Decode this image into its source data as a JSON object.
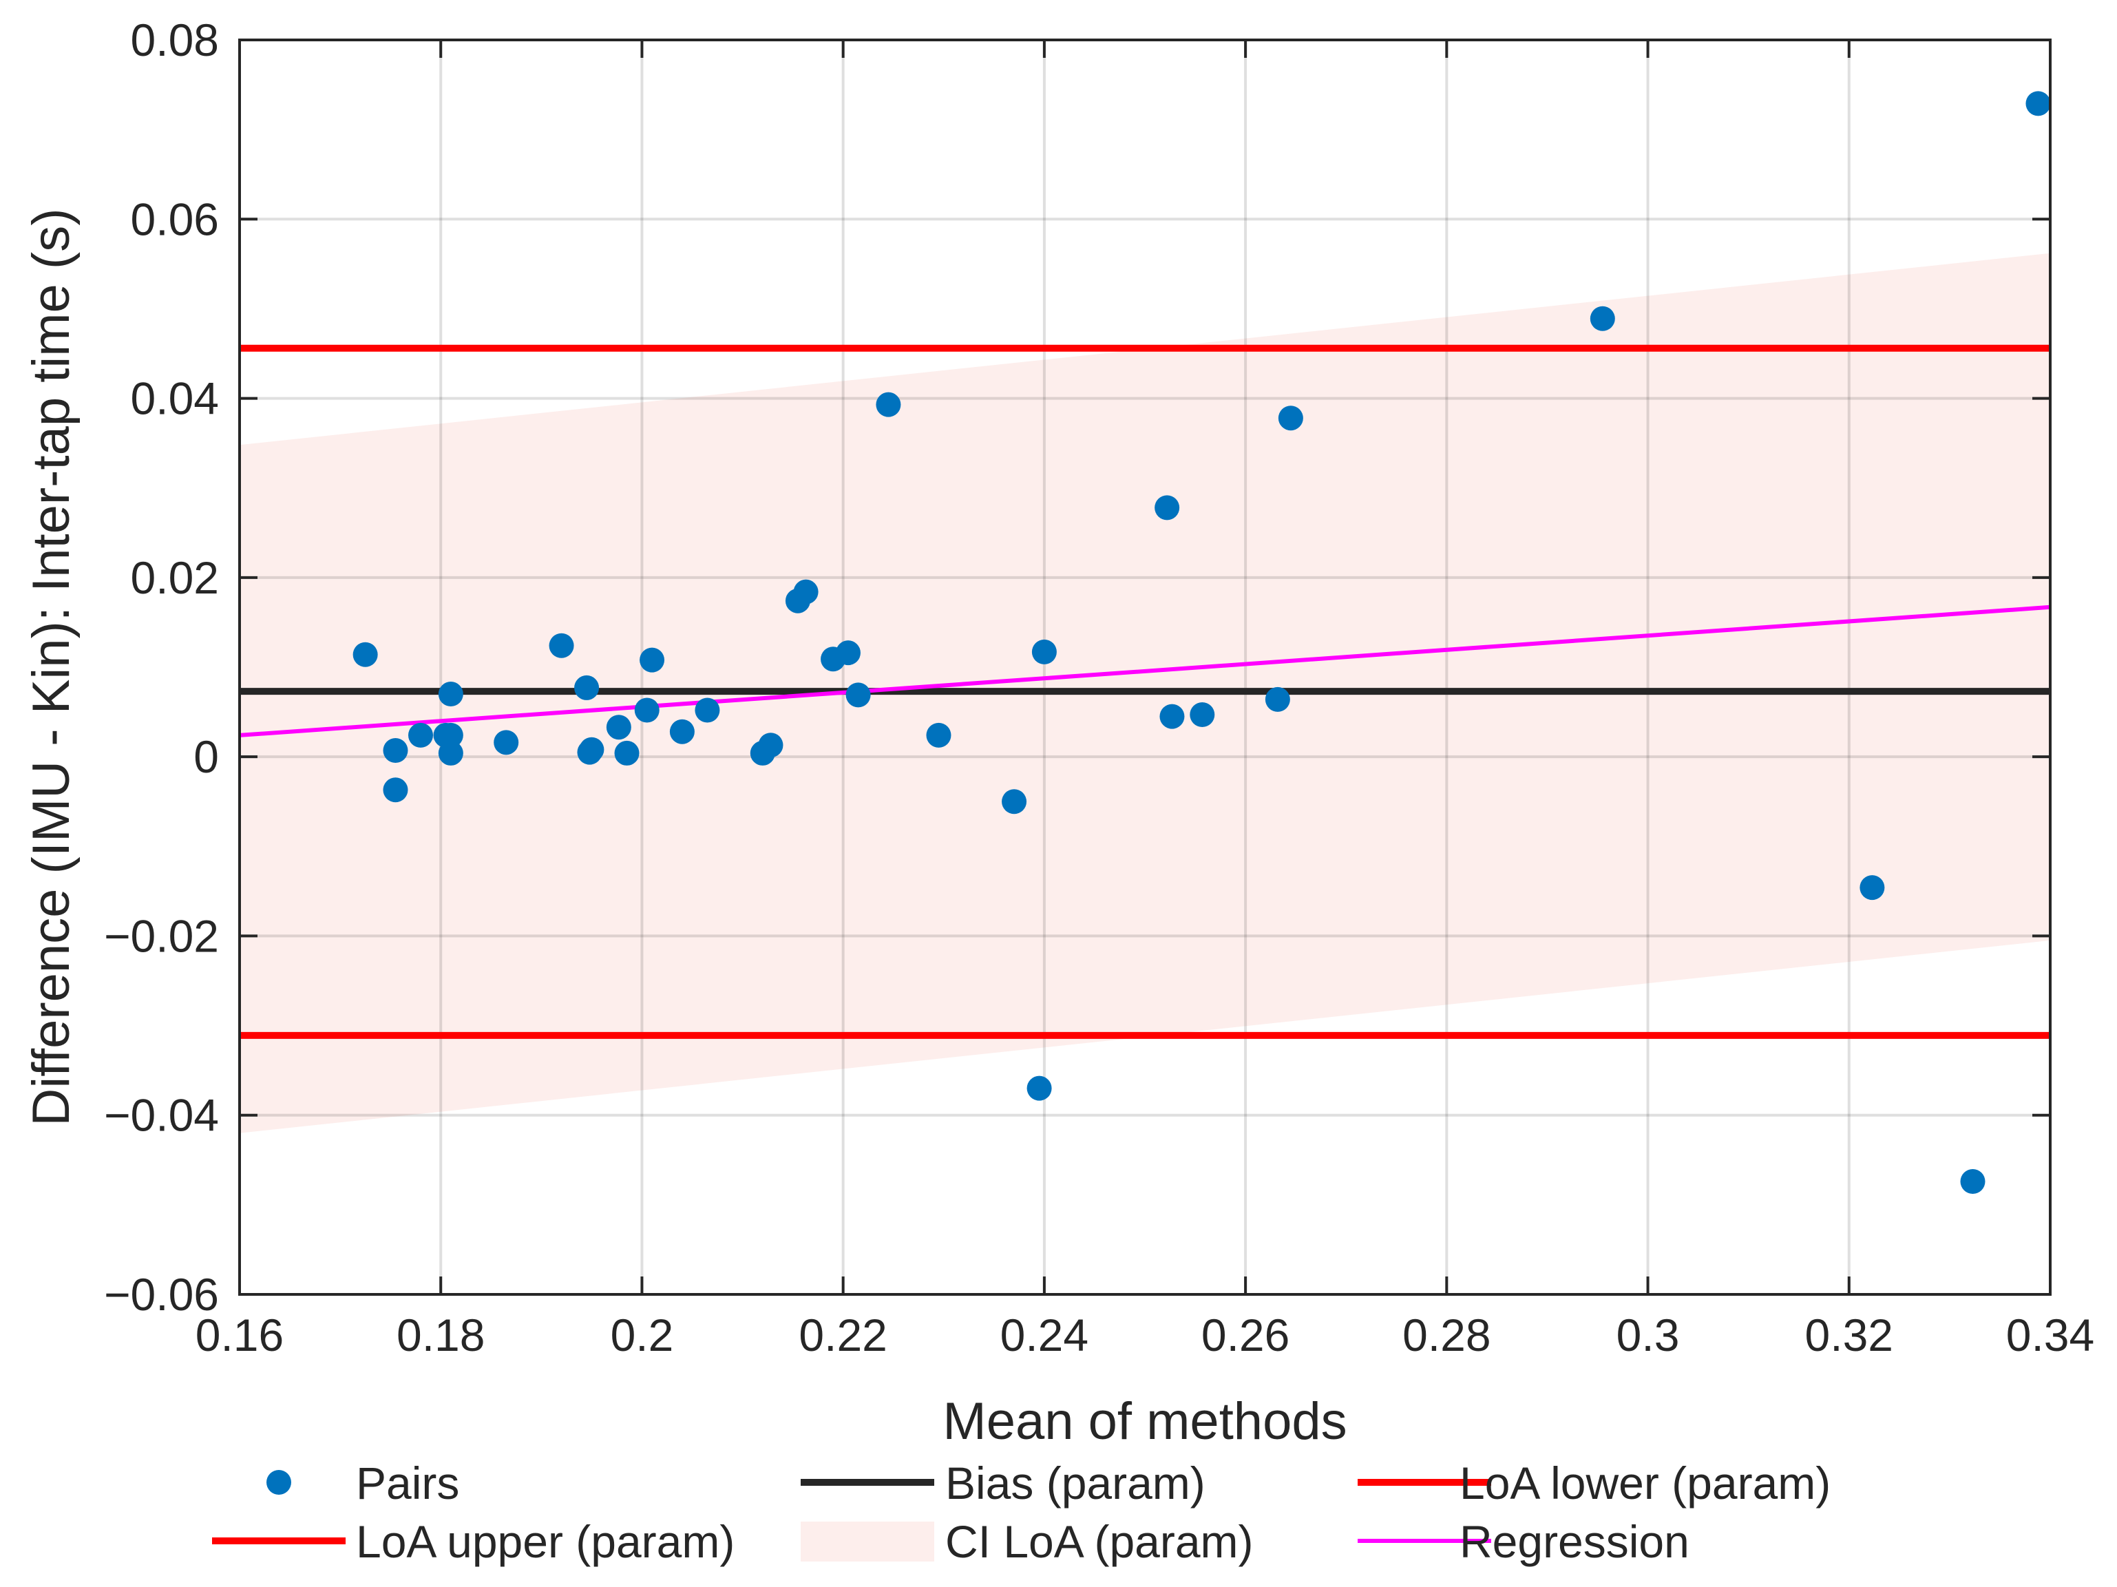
{
  "chart_data": {
    "type": "scatter",
    "xlabel": "Mean of methods",
    "ylabel": "Difference (IMU - Kin): Inter-tap time (s)",
    "xlim": [
      0.16,
      0.34
    ],
    "ylim": [
      -0.06,
      0.08
    ],
    "grid": true,
    "x_ticks": [
      0.16,
      0.18,
      0.2,
      0.22,
      0.24,
      0.26,
      0.28,
      0.3,
      0.32,
      0.34
    ],
    "x_tick_labels": [
      "0.16",
      "0.18",
      "0.2",
      "0.22",
      "0.24",
      "0.26",
      "0.28",
      "0.3",
      "0.32",
      "0.34"
    ],
    "y_ticks": [
      -0.06,
      -0.04,
      -0.02,
      0,
      0.02,
      0.04,
      0.06,
      0.08
    ],
    "y_tick_labels": [
      "−0.06",
      "−0.04",
      "−0.02",
      "0",
      "0.02",
      "0.04",
      "0.06",
      "0.08"
    ],
    "series": [
      {
        "name": "Pairs",
        "kind": "scatter",
        "color": "#0072BD",
        "points": [
          [
            0.1725,
            0.0114
          ],
          [
            0.1755,
            0.0007
          ],
          [
            0.1755,
            -0.0037
          ],
          [
            0.178,
            0.0024
          ],
          [
            0.1805,
            0.0024
          ],
          [
            0.181,
            0.007
          ],
          [
            0.181,
            0.0024
          ],
          [
            0.181,
            0.0004
          ],
          [
            0.1865,
            0.0016
          ],
          [
            0.192,
            0.0124
          ],
          [
            0.1945,
            0.0077
          ],
          [
            0.1948,
            0.0005
          ],
          [
            0.195,
            0.0008
          ],
          [
            0.1977,
            0.0033
          ],
          [
            0.1985,
            0.0004
          ],
          [
            0.2005,
            0.0052
          ],
          [
            0.201,
            0.0108
          ],
          [
            0.204,
            0.0028
          ],
          [
            0.2065,
            0.0052
          ],
          [
            0.212,
            0.0004
          ],
          [
            0.2128,
            0.0013
          ],
          [
            0.2155,
            0.0174
          ],
          [
            0.2163,
            0.0184
          ],
          [
            0.219,
            0.0109
          ],
          [
            0.2205,
            0.0116
          ],
          [
            0.2215,
            0.0069
          ],
          [
            0.2245,
            0.0393
          ],
          [
            0.2295,
            0.0024
          ],
          [
            0.237,
            -0.005
          ],
          [
            0.2395,
            -0.037
          ],
          [
            0.24,
            0.0117
          ],
          [
            0.2522,
            0.0278
          ],
          [
            0.2527,
            0.0045
          ],
          [
            0.2557,
            0.0047
          ],
          [
            0.2632,
            0.0064
          ],
          [
            0.2645,
            0.0378
          ],
          [
            0.2955,
            0.0489
          ],
          [
            0.3223,
            -0.0146
          ],
          [
            0.3323,
            -0.0474
          ],
          [
            0.3388,
            0.0729
          ]
        ]
      },
      {
        "name": "Bias (param)",
        "kind": "hline",
        "color": "#262626",
        "y": 0.0073
      },
      {
        "name": "LoA lower (param)",
        "kind": "hline",
        "color": "#FF0000",
        "y": -0.0311
      },
      {
        "name": "LoA upper (param)",
        "kind": "hline",
        "color": "#FF0000",
        "y": 0.0456
      },
      {
        "name": "CI LoA (param)",
        "kind": "band",
        "color": "#FDEEEC",
        "x": [
          0.16,
          0.34
        ],
        "lower": [
          -0.042,
          -0.0205
        ],
        "upper": [
          0.0348,
          0.0562
        ]
      },
      {
        "name": "Regression",
        "kind": "line",
        "color": "#FF00FF",
        "x": [
          0.16,
          0.34
        ],
        "y": [
          0.0024,
          0.0167
        ]
      }
    ],
    "legend": {
      "placement": "bottom",
      "items": [
        {
          "label": "Pairs",
          "kind": "marker",
          "color": "#0072BD"
        },
        {
          "label": "Bias (param)",
          "kind": "line",
          "color": "#262626"
        },
        {
          "label": "LoA lower (param)",
          "kind": "line",
          "color": "#FF0000"
        },
        {
          "label": "LoA upper (param)",
          "kind": "line",
          "color": "#FF0000"
        },
        {
          "label": "CI LoA (param)",
          "kind": "patch",
          "color": "#FDEEEC"
        },
        {
          "label": "Regression",
          "kind": "line",
          "color": "#FF00FF"
        }
      ]
    }
  }
}
